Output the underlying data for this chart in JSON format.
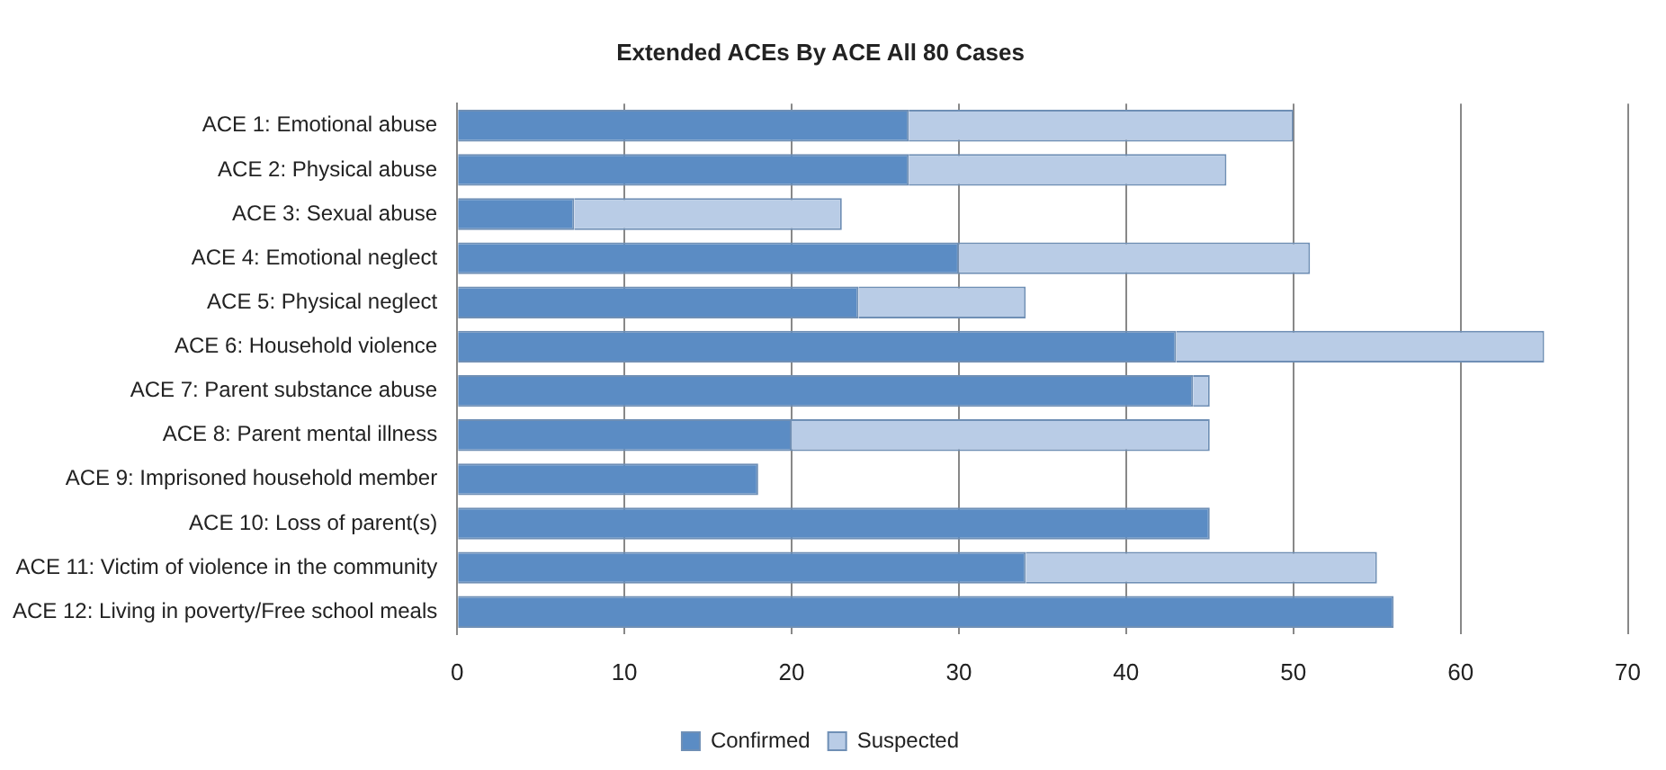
{
  "chart_data": {
    "type": "bar",
    "orientation": "horizontal",
    "stacked": true,
    "title": "Extended ACEs By ACE All 80 Cases",
    "categories": [
      "ACE 1: Emotional abuse",
      "ACE 2: Physical abuse",
      "ACE 3: Sexual abuse",
      "ACE 4: Emotional neglect",
      "ACE 5: Physical neglect",
      "ACE 6: Household violence",
      "ACE 7: Parent substance abuse",
      "ACE 8: Parent mental illness",
      "ACE 9: Imprisoned household member",
      "ACE 10: Loss of parent(s)",
      "ACE 11: Victim of violence in the community",
      "ACE 12: Living in poverty/Free school meals"
    ],
    "series": [
      {
        "name": "Confirmed",
        "color": "#5b8cc4",
        "values": [
          27,
          27,
          7,
          30,
          24,
          43,
          44,
          20,
          18,
          45,
          34,
          56
        ]
      },
      {
        "name": "Suspected",
        "color": "#b9cce6",
        "values": [
          23,
          19,
          16,
          21,
          10,
          22,
          1,
          25,
          0,
          0,
          21,
          0
        ]
      }
    ],
    "xlim": [
      0,
      70
    ],
    "xticks": [
      0,
      10,
      20,
      30,
      40,
      50,
      60,
      70
    ],
    "grid": "x",
    "legend": "bottom"
  }
}
